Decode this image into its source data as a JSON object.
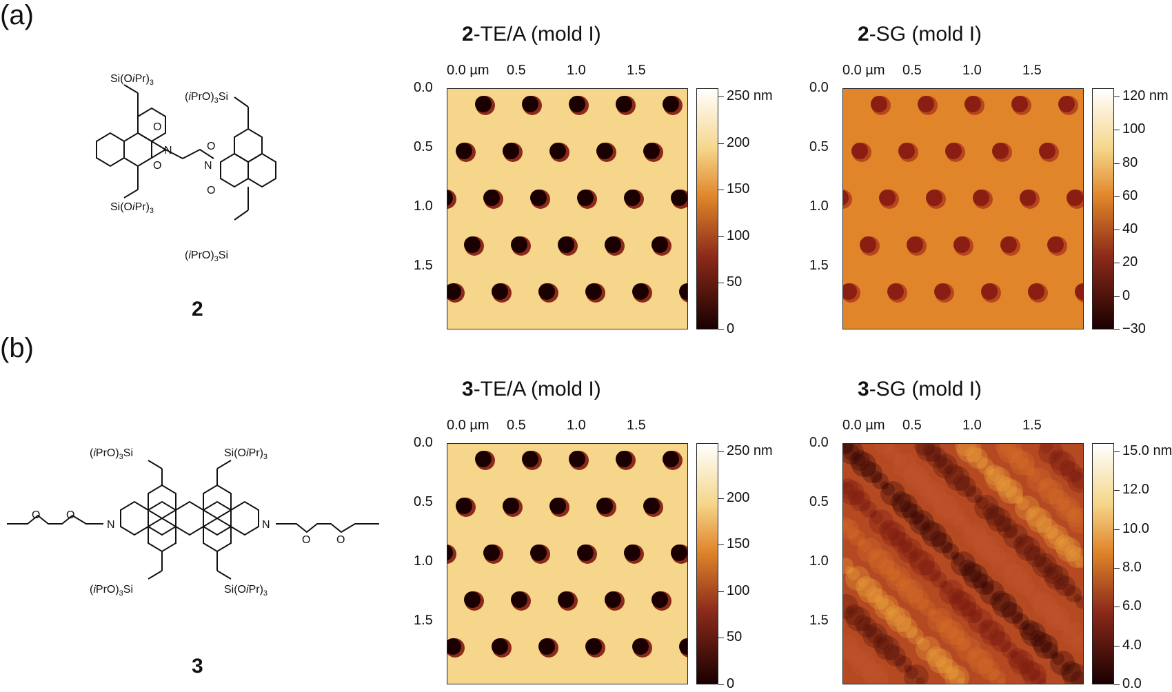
{
  "panels": {
    "a": {
      "label": "(a)",
      "compound_label": "2",
      "mol_text": {
        "si_top": "Si(O",
        "si_top_i": "i",
        "si_top_end": "Pr)",
        "si_top_sub": "3",
        "ipro_top_open": "(",
        "ipro_top_i": "i",
        "ipro_top_rest": "PrO)",
        "ipro_top_sub": "3",
        "ipro_top_end": "Si",
        "o": "O",
        "n": "N"
      },
      "images": [
        {
          "title_bold": "2",
          "title_rest": "-TE/A (mold I)",
          "x_ticks": [
            "0.0 µm",
            "0.5",
            "1.0",
            "1.5"
          ],
          "y_ticks": [
            "0.0",
            "0.5",
            "1.0",
            "1.5"
          ],
          "cbar_ticks": [
            "250 nm",
            "200",
            "150",
            "100",
            "50",
            "0"
          ],
          "pattern": "holes-strong"
        },
        {
          "title_bold": "2",
          "title_rest": "-SG (mold I)",
          "x_ticks": [
            "0.0 µm",
            "0.5",
            "1.0",
            "1.5"
          ],
          "y_ticks": [
            "0.0",
            "0.5",
            "1.0",
            "1.5"
          ],
          "cbar_ticks": [
            "120 nm",
            "100",
            "80",
            "60",
            "40",
            "20",
            "0",
            "−30"
          ],
          "pattern": "holes-weak"
        }
      ]
    },
    "b": {
      "label": "(b)",
      "compound_label": "3",
      "images": [
        {
          "title_bold": "3",
          "title_rest": "-TE/A (mold I)",
          "x_ticks": [
            "0.0 µm",
            "0.5",
            "1.0",
            "1.5"
          ],
          "y_ticks": [
            "0.0",
            "0.5",
            "1.0",
            "1.5"
          ],
          "cbar_ticks": [
            "250 nm",
            "200",
            "150",
            "100",
            "50",
            "0"
          ],
          "pattern": "holes-strong"
        },
        {
          "title_bold": "3",
          "title_rest": "-SG (mold I)",
          "x_ticks": [
            "0.0 µm",
            "0.5",
            "1.0",
            "1.5"
          ],
          "y_ticks": [
            "0.0",
            "0.5",
            "1.0",
            "1.5"
          ],
          "cbar_ticks": [
            "15.0 nm",
            "12.0",
            "10.0",
            "8.0",
            "6.0",
            "4.0",
            "0.0"
          ],
          "pattern": "rough"
        }
      ]
    }
  },
  "colors": {
    "afm_dark": "#1a0000",
    "afm_mid": "#8b2a1a",
    "afm_orange": "#e0852a",
    "afm_light": "#f5d68a",
    "afm_white": "#ffffff"
  }
}
